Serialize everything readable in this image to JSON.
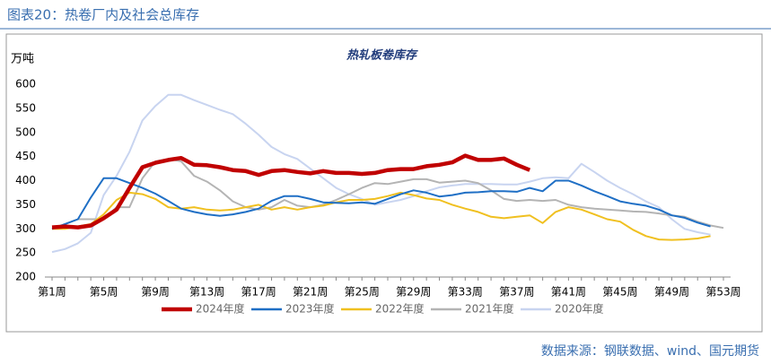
{
  "header": "图表20：热卷厂内及社会总库存",
  "source": "数据来源：钢联数据、wind、国元期货",
  "chart_data": {
    "type": "line",
    "title": "热轧板卷库存",
    "y_label": "万吨",
    "categories": [
      "第1周",
      null,
      null,
      null,
      "第5周",
      null,
      null,
      null,
      "第9周",
      null,
      null,
      null,
      "第13周",
      null,
      null,
      null,
      "第17周",
      null,
      null,
      null,
      "第21周",
      null,
      null,
      null,
      "第25周",
      null,
      null,
      null,
      "第29周",
      null,
      null,
      null,
      "第33周",
      null,
      null,
      null,
      "第37周",
      null,
      null,
      null,
      "第41周",
      null,
      null,
      null,
      "第45周",
      null,
      null,
      null,
      "第49周",
      null,
      null,
      null,
      "第53周"
    ],
    "ylim": [
      200,
      600
    ],
    "yticks": [
      200,
      250,
      300,
      350,
      400,
      450,
      500,
      550,
      600
    ],
    "grid": false,
    "legend": "bottom",
    "series": [
      {
        "name": "2024年度",
        "color": "#c00000",
        "values": [
          303,
          305,
          303,
          307,
          322,
          340,
          385,
          428,
          437,
          443,
          447,
          433,
          432,
          428,
          422,
          420,
          412,
          420,
          422,
          418,
          415,
          420,
          416,
          416,
          414,
          416,
          422,
          424,
          424,
          430,
          433,
          438,
          452,
          443,
          443,
          446,
          433,
          422,
          null,
          null,
          null,
          null,
          null,
          null,
          null,
          null,
          null,
          null,
          null,
          null,
          null,
          null,
          null
        ]
      },
      {
        "name": "2023年度",
        "color": "#1f6fc5",
        "values": [
          300,
          310,
          320,
          365,
          405,
          405,
          395,
          385,
          373,
          358,
          342,
          335,
          330,
          327,
          330,
          335,
          342,
          358,
          368,
          368,
          362,
          355,
          354,
          353,
          355,
          352,
          362,
          372,
          380,
          375,
          367,
          370,
          375,
          376,
          378,
          378,
          377,
          385,
          378,
          400,
          400,
          390,
          378,
          368,
          357,
          352,
          348,
          340,
          328,
          323,
          313,
          305,
          null
        ]
      },
      {
        "name": "2022年度",
        "color": "#f0c020",
        "values": [
          300,
          300,
          305,
          310,
          330,
          360,
          375,
          372,
          362,
          345,
          342,
          345,
          340,
          338,
          340,
          345,
          350,
          340,
          345,
          340,
          345,
          348,
          355,
          360,
          360,
          362,
          368,
          375,
          370,
          363,
          360,
          350,
          342,
          335,
          325,
          322,
          325,
          328,
          312,
          335,
          345,
          340,
          330,
          320,
          315,
          298,
          285,
          278,
          277,
          278,
          280,
          285,
          null
        ]
      },
      {
        "name": "2021年度",
        "color": "#b4b4b4",
        "values": [
          300,
          310,
          320,
          320,
          320,
          345,
          345,
          405,
          440,
          445,
          440,
          410,
          398,
          380,
          357,
          345,
          340,
          345,
          360,
          348,
          345,
          350,
          360,
          372,
          385,
          395,
          393,
          398,
          403,
          403,
          396,
          398,
          400,
          395,
          380,
          362,
          358,
          360,
          358,
          360,
          350,
          345,
          342,
          340,
          338,
          336,
          335,
          332,
          328,
          325,
          315,
          307,
          302
        ]
      },
      {
        "name": "2020年度",
        "color": "#c8d4f0",
        "values": [
          252,
          258,
          270,
          292,
          370,
          410,
          460,
          525,
          555,
          578,
          578,
          567,
          557,
          547,
          538,
          518,
          495,
          470,
          455,
          445,
          425,
          405,
          385,
          372,
          362,
          350,
          355,
          360,
          368,
          378,
          386,
          390,
          393,
          393,
          393,
          392,
          392,
          398,
          405,
          407,
          405,
          435,
          418,
          400,
          385,
          372,
          357,
          345,
          320,
          300,
          293,
          288,
          null
        ]
      }
    ]
  }
}
